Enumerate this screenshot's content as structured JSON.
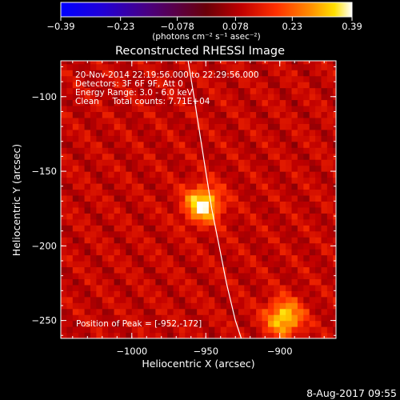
{
  "chart_data": {
    "type": "heatmap",
    "title": "Reconstructed RHESSI Image",
    "xlabel": "Heliocentric X (arcsec)",
    "ylabel": "Heliocentric Y (arcsec)",
    "xlim": [
      -1048,
      -862
    ],
    "ylim": [
      -262,
      -76
    ],
    "x_ticks": [
      -1000,
      -950,
      -900
    ],
    "x_tick_labels": [
      "−1000",
      "−950",
      "−900"
    ],
    "y_ticks": [
      -100,
      -150,
      -200,
      -250
    ],
    "y_tick_labels": [
      "−100",
      "−150",
      "−200",
      "−250"
    ],
    "colorbar": {
      "range": [
        -0.39,
        0.39
      ],
      "ticks": [
        -0.39,
        -0.23,
        -0.078,
        0.078,
        0.23,
        0.39
      ],
      "tick_labels": [
        "−0.39",
        "−0.23",
        "−0.078",
        "0.078",
        "0.23",
        "0.39"
      ],
      "units_label": "(photons cm⁻² s⁻¹ asec⁻²)"
    },
    "sources": [
      {
        "x": -952,
        "y": -172,
        "peak": 0.39
      },
      {
        "x": -897,
        "y": -248,
        "peak": 0.36
      }
    ],
    "limb_points": [
      [
        -962,
        -76
      ],
      [
        -958,
        -100
      ],
      [
        -954,
        -125
      ],
      [
        -950,
        -150
      ],
      [
        -946,
        -175
      ],
      [
        -941,
        -200
      ],
      [
        -936,
        -225
      ],
      [
        -930,
        -250
      ],
      [
        -926,
        -262
      ]
    ],
    "annotations": [
      "20-Nov-2014 22:19:56.000 to 22:29:56.000",
      "Detectors: 3F 6F 9F, Att 0",
      "Energy Range: 3.0 - 6.0 keV",
      "Clean     Total counts: 7.71E+04"
    ],
    "peak_label": "Position of Peak = [-952,-172]",
    "footer_timestamp": "8-Aug-2017 09:55"
  }
}
